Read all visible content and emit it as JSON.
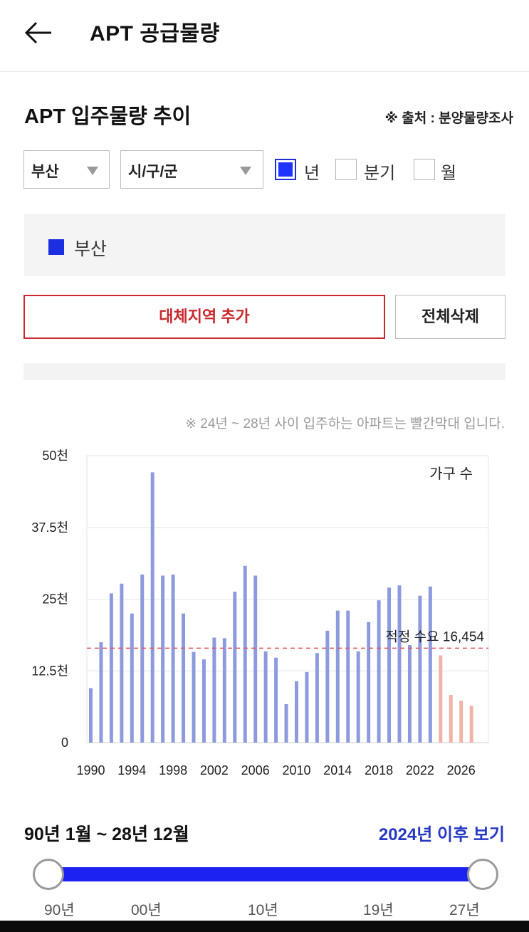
{
  "header": {
    "back_icon": "back-arrow-icon",
    "title": "APT 공급물량"
  },
  "section": {
    "title": "APT 입주물량 추이",
    "source": "※ 출처 : 분양물량조사"
  },
  "filters": {
    "region": "부산",
    "district": "시/구/군",
    "periods": [
      {
        "label": "년",
        "checked": true
      },
      {
        "label": "분기",
        "checked": false
      },
      {
        "label": "월",
        "checked": false
      }
    ]
  },
  "legend": {
    "label": "부산",
    "color": "#1c2fe0"
  },
  "buttons": {
    "add": "대체지역 추가",
    "delete_all": "전체삭제"
  },
  "note": "※ 24년 ~ 28년 사이 입주하는 아파트는 빨간막대 입니다.",
  "chart_data": {
    "type": "bar",
    "series_label": "가구 수",
    "ylim": [
      0,
      50000
    ],
    "y_tick_labels": [
      "50천",
      "37.5천",
      "25천",
      "12.5천",
      "0"
    ],
    "x_tick_labels": [
      "1990",
      "1994",
      "1998",
      "2002",
      "2006",
      "2010",
      "2014",
      "2018",
      "2022",
      "2026"
    ],
    "categories": [
      "1990",
      "1991",
      "1992",
      "1993",
      "1994",
      "1995",
      "1996",
      "1997",
      "1998",
      "1999",
      "2000",
      "2001",
      "2002",
      "2003",
      "2004",
      "2005",
      "2006",
      "2007",
      "2008",
      "2009",
      "2010",
      "2011",
      "2012",
      "2013",
      "2014",
      "2015",
      "2016",
      "2017",
      "2018",
      "2019",
      "2020",
      "2021",
      "2022",
      "2023",
      "2024",
      "2025",
      "2026",
      "2027"
    ],
    "values": [
      9500,
      17500,
      26000,
      27700,
      22500,
      29300,
      47100,
      29100,
      29300,
      22500,
      15800,
      14500,
      18300,
      18200,
      26300,
      30800,
      29100,
      15900,
      14800,
      6700,
      10700,
      12300,
      15600,
      19500,
      23000,
      23000,
      15900,
      21000,
      24800,
      27000,
      27400,
      17000,
      25600,
      27200,
      15200,
      8300,
      7300,
      6400
    ],
    "highlight_from": "2024",
    "colors": {
      "normal": "#8d9bde",
      "future": "#f2b3a8",
      "threshold": "#e0575c",
      "grid": "#e6e6e6"
    },
    "threshold": {
      "value": 16454,
      "label": "적정 수요 16,454"
    }
  },
  "range": {
    "text": "90년 1월 ~ 28년 12월",
    "after_link": "2024년 이후 보기",
    "labels": [
      "90년",
      "00년",
      "10년",
      "19년",
      "27년"
    ]
  }
}
